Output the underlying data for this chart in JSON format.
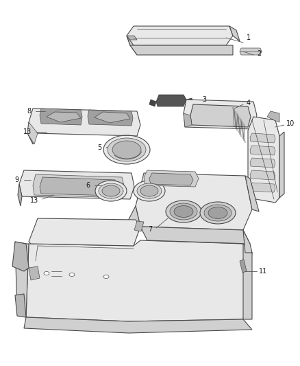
{
  "background_color": "#ffffff",
  "line_color": "#4a4a4a",
  "fill_light": "#e8e8e8",
  "fill_mid": "#d0d0d0",
  "fill_dark": "#b8b8b8",
  "fill_darker": "#a0a0a0",
  "text_color": "#1a1a1a",
  "fig_width": 4.38,
  "fig_height": 5.33,
  "dpi": 100
}
